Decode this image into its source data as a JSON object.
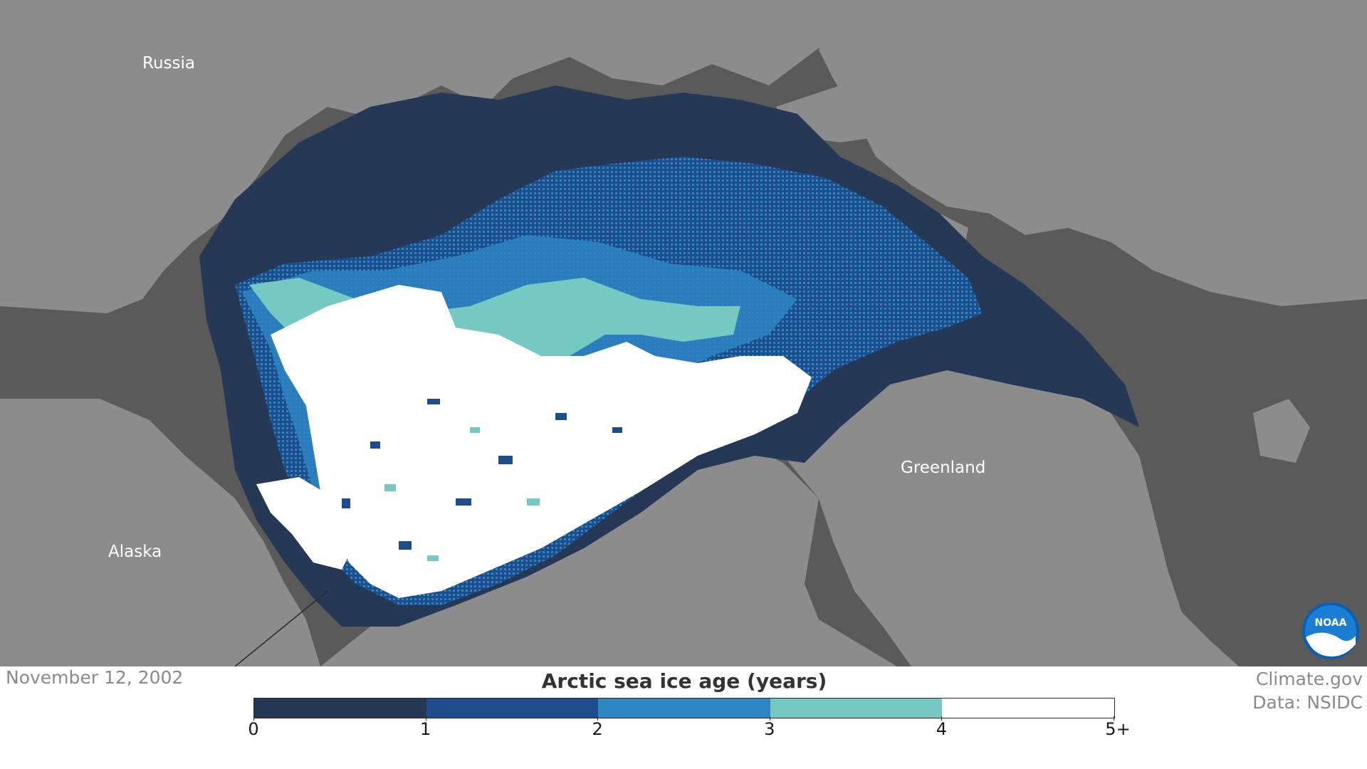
{
  "map": {
    "place_labels": {
      "russia": "Russia",
      "alaska": "Alaska",
      "greenland": "Greenland"
    },
    "land_color": "#8c8c8c",
    "background_color": "#5a5a5a",
    "logo_text": "NOAA"
  },
  "date": "November 12, 2002",
  "credit": {
    "line1": "Climate.gov",
    "line2": "Data: NSIDC"
  },
  "legend": {
    "title": "Arctic sea ice age (years)",
    "ticks": [
      "0",
      "1",
      "2",
      "3",
      "4",
      "5+"
    ],
    "colors": [
      "#253855",
      "#1e4d8c",
      "#2d85c2",
      "#76c9c3",
      "#ffffff"
    ]
  }
}
